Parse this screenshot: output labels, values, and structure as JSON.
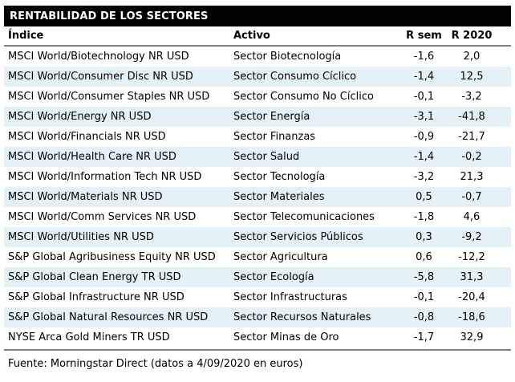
{
  "page": {
    "title": "RENTABILIDAD DE LOS SECTORES",
    "footer": "Fuente: Morningstar Direct (datos a 4/09/2020 en euros)"
  },
  "table": {
    "columns": [
      "Índice",
      "Activo",
      "R sem",
      "R 2020"
    ],
    "rows": [
      {
        "indice": "MSCI World/Biotechnology NR USD",
        "activo": "Sector Biotecnología",
        "r_sem": "-1,6",
        "r_2020": "2,0"
      },
      {
        "indice": "MSCI World/Consumer Disc NR USD",
        "activo": "Sector Consumo Cíclico",
        "r_sem": "-1,4",
        "r_2020": "12,5"
      },
      {
        "indice": "MSCI World/Consumer Staples NR USD",
        "activo": "Sector Consumo No Cíclico",
        "r_sem": "-0,1",
        "r_2020": "-3,2"
      },
      {
        "indice": "MSCI World/Energy NR USD",
        "activo": "Sector Energía",
        "r_sem": "-3,1",
        "r_2020": "-41,8"
      },
      {
        "indice": "MSCI World/Financials NR USD",
        "activo": "Sector Finanzas",
        "r_sem": "-0,9",
        "r_2020": "-21,7"
      },
      {
        "indice": "MSCI World/Health Care NR USD",
        "activo": "Sector Salud",
        "r_sem": "-1,4",
        "r_2020": "-0,2"
      },
      {
        "indice": "MSCI World/Information Tech NR USD",
        "activo": "Sector Tecnología",
        "r_sem": "-3,2",
        "r_2020": "21,3"
      },
      {
        "indice": "MSCI World/Materials NR USD",
        "activo": "Sector Materiales",
        "r_sem": "0,5",
        "r_2020": "-0,7"
      },
      {
        "indice": "MSCI World/Comm Services NR USD",
        "activo": "Sector Telecomunicaciones",
        "r_sem": "-1,8",
        "r_2020": "4,6"
      },
      {
        "indice": "MSCI World/Utilities NR USD",
        "activo": "Sector Servicios Públicos",
        "r_sem": "0,3",
        "r_2020": "-9,2"
      },
      {
        "indice": "S&P Global Agribusiness Equity NR USD",
        "activo": "Sector Agricultura",
        "r_sem": "0,6",
        "r_2020": "-12,2"
      },
      {
        "indice": "S&P Global Clean Energy TR USD",
        "activo": "Sector Ecología",
        "r_sem": "-5,8",
        "r_2020": "31,3"
      },
      {
        "indice": "S&P Global Infrastructure NR USD",
        "activo": "Sector Infrastructuras",
        "r_sem": "-0,1",
        "r_2020": "-20,4"
      },
      {
        "indice": "S&P Global Natural Resources NR USD",
        "activo": "Sector Recursos Naturales",
        "r_sem": "-0,8",
        "r_2020": "-18,6"
      },
      {
        "indice": "NYSE Arca Gold Miners TR USD",
        "activo": "Sector Minas de Oro",
        "r_sem": "-1,7",
        "r_2020": "32,9"
      }
    ]
  },
  "colors": {
    "header_bg": "#000000",
    "header_text": "#ffffff",
    "row_alt_bg": "#e4f1f7",
    "rule_gray": "#808080",
    "text": "#000000"
  },
  "chart_data": {
    "type": "table",
    "title": "RENTABILIDAD DE LOS SECTORES",
    "columns": [
      "Índice",
      "Activo",
      "R sem",
      "R 2020"
    ],
    "rows": [
      [
        "MSCI World/Biotechnology NR USD",
        "Sector Biotecnología",
        -1.6,
        2.0
      ],
      [
        "MSCI World/Consumer Disc NR USD",
        "Sector Consumo Cíclico",
        -1.4,
        12.5
      ],
      [
        "MSCI World/Consumer Staples NR USD",
        "Sector Consumo No Cíclico",
        -0.1,
        -3.2
      ],
      [
        "MSCI World/Energy NR USD",
        "Sector Energía",
        -3.1,
        -41.8
      ],
      [
        "MSCI World/Financials NR USD",
        "Sector Finanzas",
        -0.9,
        -21.7
      ],
      [
        "MSCI World/Health Care NR USD",
        "Sector Salud",
        -1.4,
        -0.2
      ],
      [
        "MSCI World/Information Tech NR USD",
        "Sector Tecnología",
        -3.2,
        21.3
      ],
      [
        "MSCI World/Materials NR USD",
        "Sector Materiales",
        0.5,
        -0.7
      ],
      [
        "MSCI World/Comm Services NR USD",
        "Sector Telecomunicaciones",
        -1.8,
        4.6
      ],
      [
        "MSCI World/Utilities NR USD",
        "Sector Servicios Públicos",
        0.3,
        -9.2
      ],
      [
        "S&P Global Agribusiness Equity NR USD",
        "Sector Agricultura",
        0.6,
        -12.2
      ],
      [
        "S&P Global Clean Energy TR USD",
        "Sector Ecología",
        -5.8,
        31.3
      ],
      [
        "S&P Global Infrastructure NR USD",
        "Sector Infrastructuras",
        -0.1,
        -20.4
      ],
      [
        "S&P Global Natural Resources NR USD",
        "Sector Recursos Naturales",
        -0.8,
        -18.6
      ],
      [
        "NYSE Arca Gold Miners TR USD",
        "Sector Minas de Oro",
        -1.7,
        32.9
      ]
    ],
    "source": "Fuente: Morningstar Direct (datos a 4/09/2020 en euros)",
    "layout": {
      "striped": true,
      "first_data_row_background": "white",
      "alternate_row_background": "#e4f1f7"
    }
  }
}
